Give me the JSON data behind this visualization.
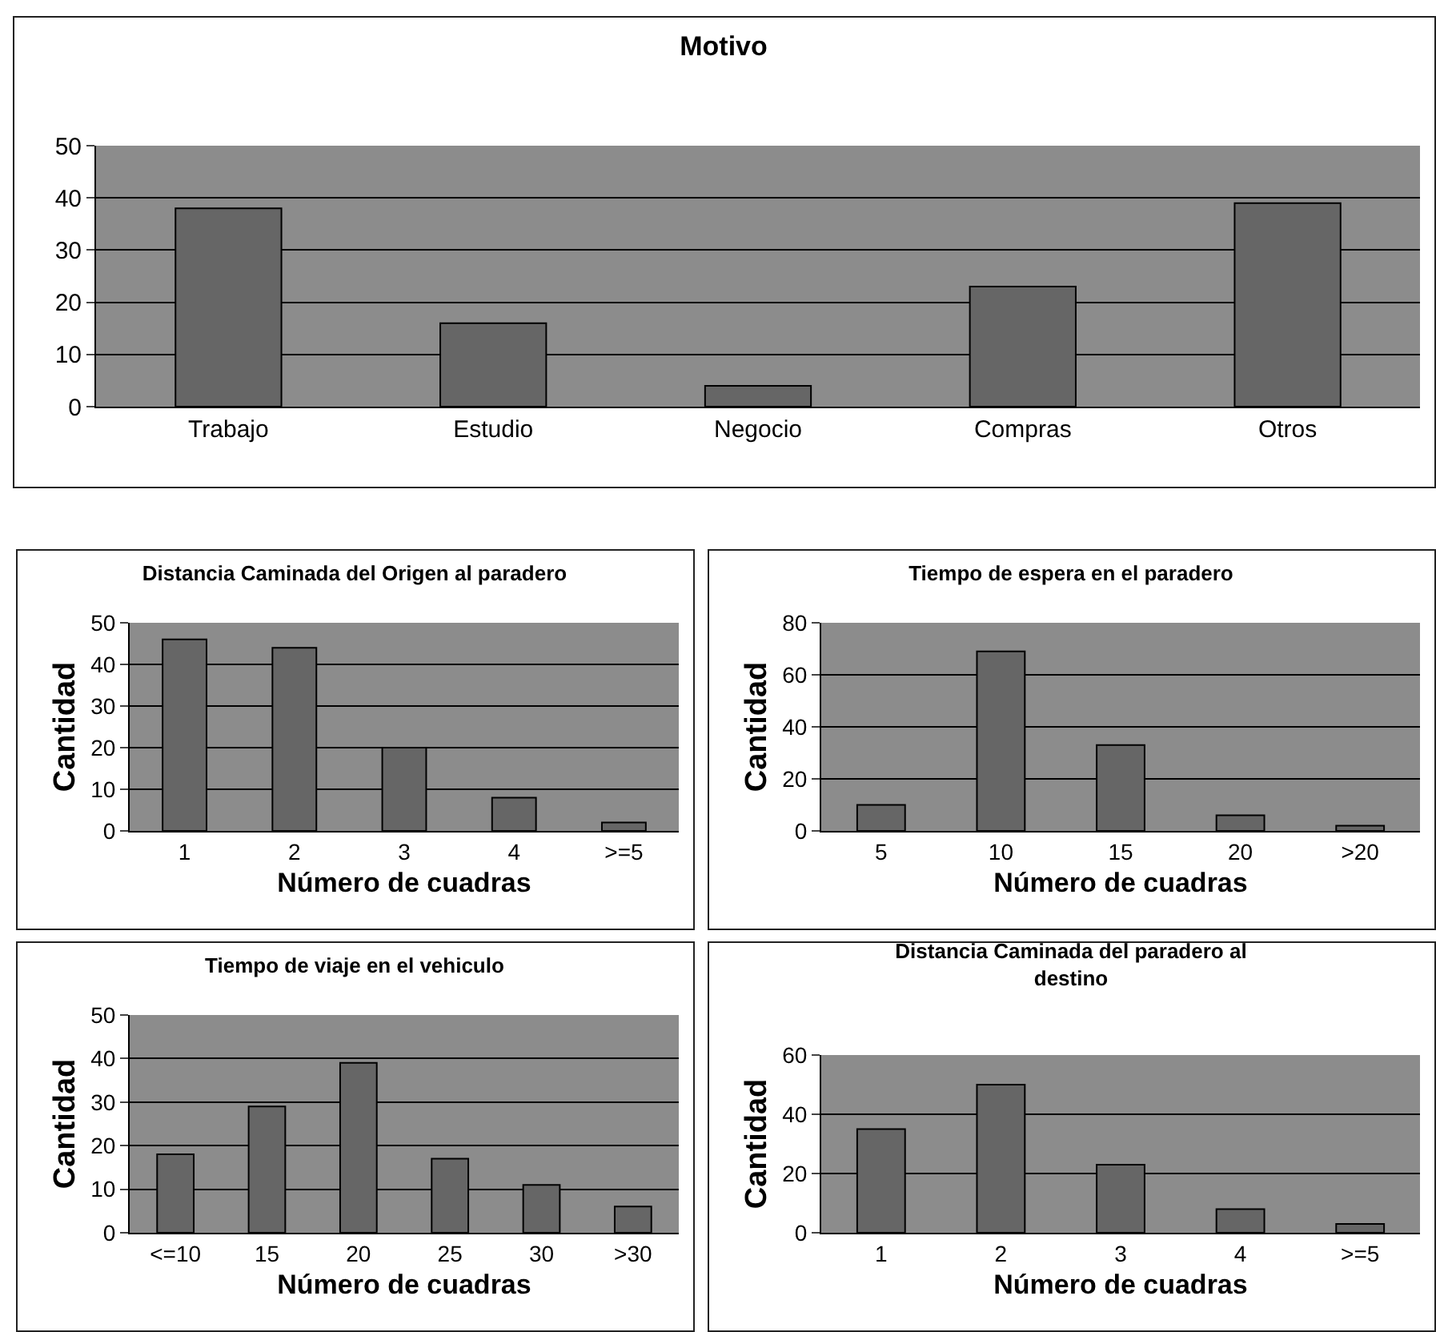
{
  "chart_data": [
    {
      "type": "bar",
      "title": "Motivo",
      "categories": [
        "Trabajo",
        "Estudio",
        "Negocio",
        "Compras",
        "Otros"
      ],
      "values": [
        38,
        16,
        4,
        23,
        39
      ],
      "color": "#666666",
      "ylim": [
        0,
        50
      ],
      "yticks": [
        0,
        10,
        20,
        30,
        40,
        50
      ],
      "grid": "y"
    },
    {
      "type": "bar",
      "title": "Distancia Caminada del Origen al paradero",
      "xlabel": "Número de cuadras",
      "ylabel": "Cantidad",
      "categories": [
        "1",
        "2",
        "3",
        "4",
        ">=5"
      ],
      "values": [
        46,
        44,
        20,
        8,
        2
      ],
      "color": "#666666",
      "ylim": [
        0,
        50
      ],
      "yticks": [
        0,
        10,
        20,
        30,
        40,
        50
      ],
      "grid": "y"
    },
    {
      "type": "bar",
      "title": "Tiempo de espera en el paradero",
      "xlabel": "Número de cuadras",
      "ylabel": "Cantidad",
      "categories": [
        "5",
        "10",
        "15",
        "20",
        ">20"
      ],
      "values": [
        10,
        69,
        33,
        6,
        2
      ],
      "color": "#666666",
      "ylim": [
        0,
        80
      ],
      "yticks": [
        0,
        20,
        40,
        60,
        80
      ],
      "grid": "y"
    },
    {
      "type": "bar",
      "title": "Tiempo de viaje en el vehiculo",
      "xlabel": "Número de cuadras",
      "ylabel": "Cantidad",
      "categories": [
        "<=10",
        "15",
        "20",
        "25",
        "30",
        ">30"
      ],
      "values": [
        18,
        29,
        39,
        17,
        11,
        6
      ],
      "color": "#666666",
      "ylim": [
        0,
        50
      ],
      "yticks": [
        0,
        10,
        20,
        30,
        40,
        50
      ],
      "grid": "y"
    },
    {
      "type": "bar",
      "title": "Distancia Caminada del paradero al destino",
      "xlabel": "Número de cuadras",
      "ylabel": "Cantidad",
      "categories": [
        "1",
        "2",
        "3",
        "4",
        ">=5"
      ],
      "values": [
        35,
        50,
        23,
        8,
        3
      ],
      "color": "#666666",
      "ylim": [
        0,
        60
      ],
      "yticks": [
        0,
        20,
        40,
        60
      ],
      "grid": "y"
    }
  ]
}
